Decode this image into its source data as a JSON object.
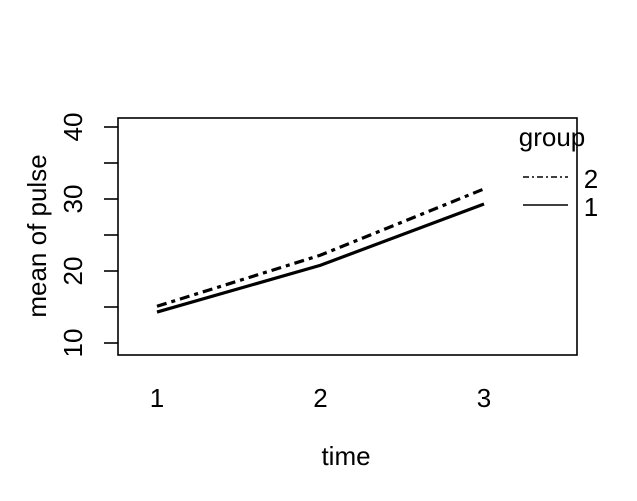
{
  "figure": {
    "background_color": "#ffffff",
    "foreground_color": "#000000"
  },
  "chart_data": {
    "type": "line",
    "title": "",
    "xlabel": "time",
    "ylabel": "mean of pulse",
    "x": [
      1,
      2,
      3
    ],
    "x_tick_labels": [
      "1",
      "2",
      "3"
    ],
    "y_ticks": [
      10,
      15,
      20,
      25,
      30,
      35,
      40
    ],
    "y_labeled_ticks": [
      {
        "value": 10,
        "label": "10"
      },
      {
        "value": 20,
        "label": "20"
      },
      {
        "value": 30,
        "label": "30"
      },
      {
        "value": 40,
        "label": "40"
      }
    ],
    "ylim": [
      8.8,
      41.2
    ],
    "xlim": [
      0.76,
      3.64
    ],
    "grid": false,
    "series": [
      {
        "name": "2",
        "line_style": "dotdash",
        "line_width": 3.2,
        "color": "#000000",
        "values": [
          15.1,
          22.2,
          31.4
        ]
      },
      {
        "name": "1",
        "line_style": "solid",
        "line_width": 3.2,
        "color": "#000000",
        "values": [
          14.3,
          20.8,
          29.3
        ]
      }
    ],
    "legend": {
      "title": "group",
      "position": "top-right",
      "entries": [
        {
          "label": "2",
          "line_style": "dotdash"
        },
        {
          "label": "1",
          "line_style": "solid"
        }
      ]
    }
  }
}
